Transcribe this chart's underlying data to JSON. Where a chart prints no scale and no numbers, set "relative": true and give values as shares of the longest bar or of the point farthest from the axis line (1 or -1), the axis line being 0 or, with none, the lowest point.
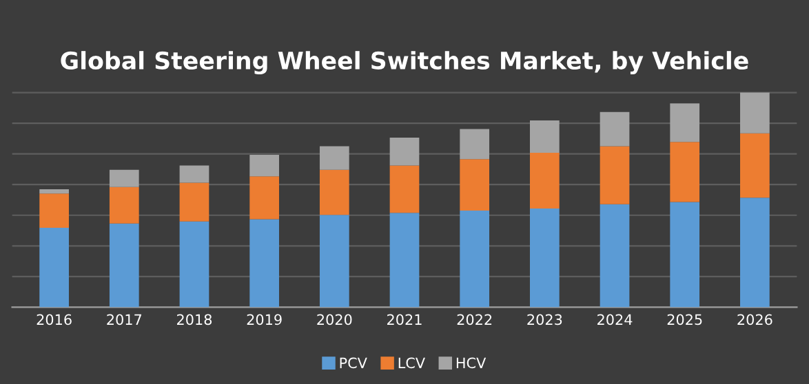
{
  "chart_data": {
    "type": "bar",
    "title": "Global Steering Wheel Switches Market, by Vehicle",
    "relative": true,
    "stacked": true,
    "grid": "y",
    "legend": "bottom",
    "categories": [
      "2016",
      "2017",
      "2018",
      "2019",
      "2020",
      "2021",
      "2022",
      "2023",
      "2024",
      "2025",
      "2026"
    ],
    "series": [
      {
        "name": "PCV",
        "color": "#5b9bd5",
        "values": [
          0.37,
          0.39,
          0.4,
          0.41,
          0.43,
          0.44,
          0.45,
          0.46,
          0.48,
          0.49,
          0.51
        ]
      },
      {
        "name": "LCV",
        "color": "#ed7d31",
        "values": [
          0.16,
          0.17,
          0.18,
          0.2,
          0.21,
          0.22,
          0.24,
          0.26,
          0.27,
          0.28,
          0.3
        ]
      },
      {
        "name": "HCV",
        "color": "#a5a5a5",
        "values": [
          0.02,
          0.08,
          0.08,
          0.1,
          0.11,
          0.13,
          0.14,
          0.15,
          0.16,
          0.18,
          0.19
        ]
      }
    ]
  }
}
